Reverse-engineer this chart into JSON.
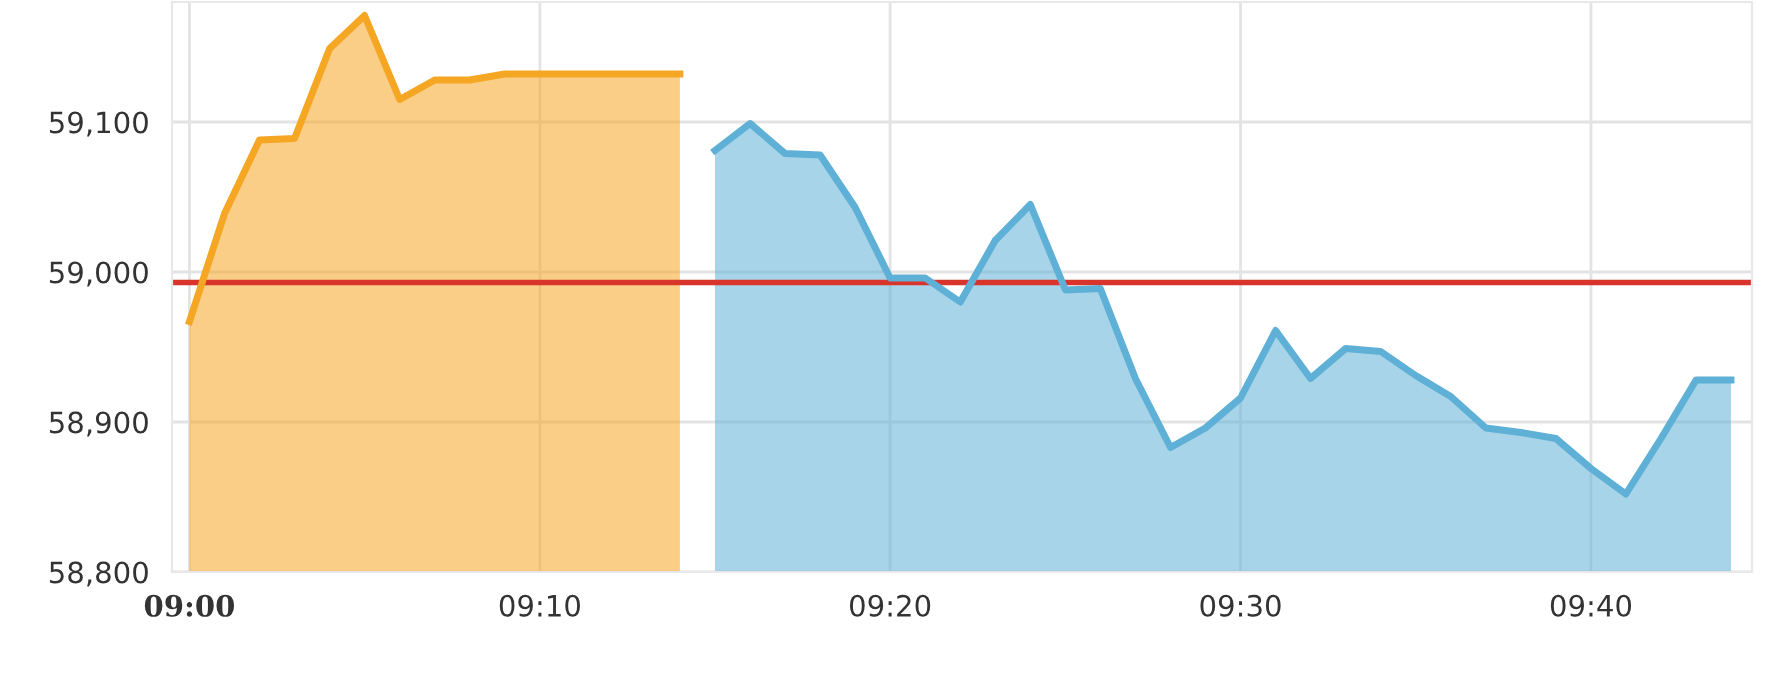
{
  "chart_data": {
    "type": "area",
    "series": [
      {
        "color": "#f5a623",
        "x": [
          9.0,
          9.0167,
          9.0333,
          9.05,
          9.0667,
          9.0833,
          9.1,
          9.1167,
          9.1333,
          9.15,
          9.1667,
          9.1833,
          9.2,
          9.2167,
          9.2333
        ],
        "values": [
          58967,
          59039,
          59088,
          59089,
          59149,
          59171,
          59115,
          59128,
          59128,
          59132,
          59132,
          59132,
          59132,
          59132,
          59132
        ]
      },
      {
        "color": "#5fb0d6",
        "x": [
          9.25,
          9.2667,
          9.2833,
          9.3,
          9.3167,
          9.3333,
          9.35,
          9.3667,
          9.3833,
          9.4,
          9.4167,
          9.4333,
          9.45,
          9.4667,
          9.4833,
          9.5,
          9.5167,
          9.5333,
          9.55,
          9.5667,
          9.5833,
          9.6,
          9.6167,
          9.6333,
          9.65,
          9.6667,
          9.6833,
          9.7,
          9.7167,
          9.7333
        ],
        "values": [
          59081,
          59099,
          59079,
          59078,
          59043,
          58996,
          58996,
          58980,
          59021,
          59045,
          58988,
          58989,
          58929,
          58883,
          58896,
          58916,
          58961,
          58929,
          58949,
          58947,
          58931,
          58917,
          58896,
          58893,
          58889,
          58869,
          58852,
          58889,
          58928,
          58928
        ]
      }
    ],
    "xlim": [
      8.9917,
      9.7433
    ],
    "xticks": [
      {
        "value": 9.0,
        "label": "09:00"
      },
      {
        "value": 9.1667,
        "label": "09:10"
      },
      {
        "value": 9.3333,
        "label": "09:20"
      },
      {
        "value": 9.5,
        "label": "09:30"
      },
      {
        "value": 9.6667,
        "label": "09:40"
      }
    ],
    "ylim": [
      58800,
      59180
    ],
    "yticks": [
      {
        "value": 58800,
        "label": "58,800"
      },
      {
        "value": 58900,
        "label": "58,900"
      },
      {
        "value": 59000,
        "label": "59,000"
      },
      {
        "value": 59100,
        "label": "59,100"
      }
    ],
    "ref_lines": [
      {
        "axis": "y",
        "value": 58993,
        "label": null,
        "color": "#d9342b"
      }
    ],
    "grid": true
  }
}
